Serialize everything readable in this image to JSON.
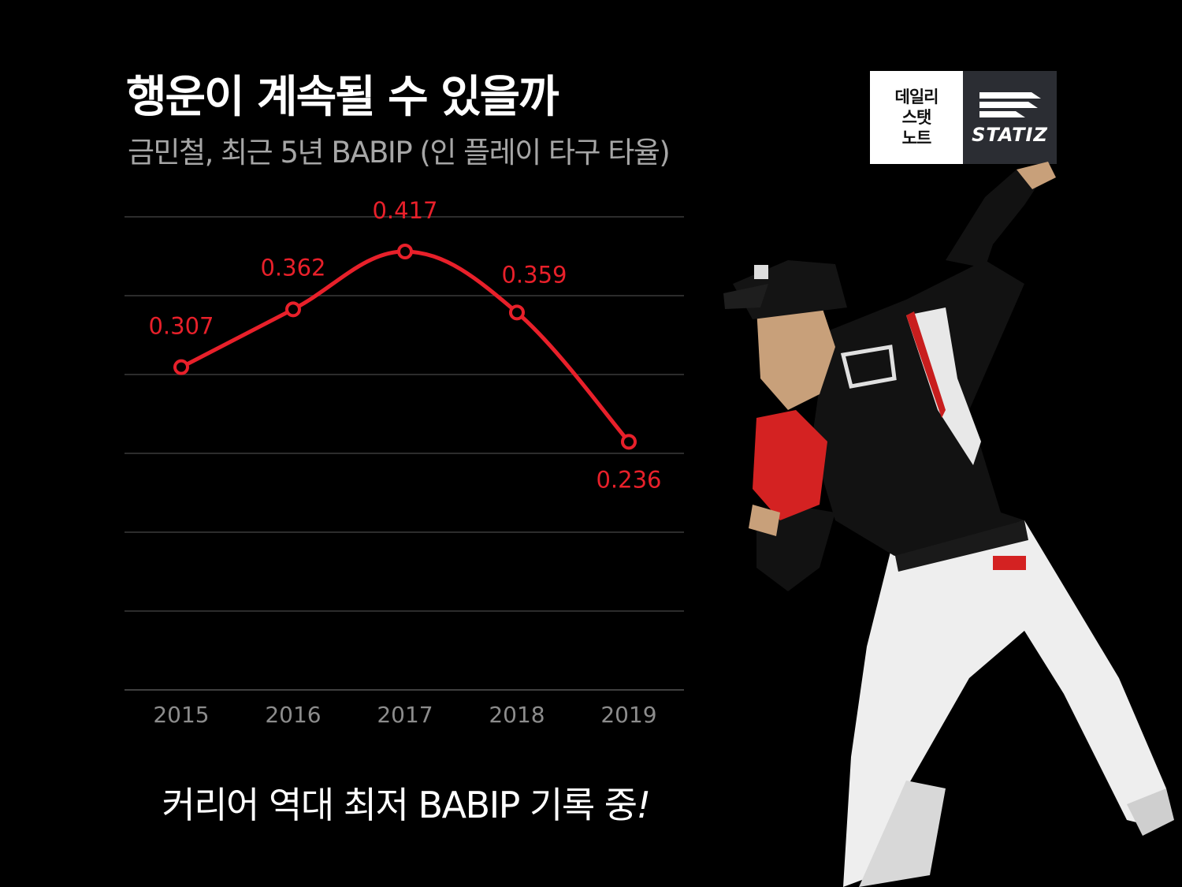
{
  "title": "행운이 계속될 수 있을까",
  "subtitle": "금민철, 최근 5년 BABIP (인 플레이 타구 타율)",
  "caption": {
    "text": "커리어 역대 최저 BABIP 기록 중",
    "mark": "!"
  },
  "logo": {
    "lines": [
      "데일리",
      "스탯",
      "노트"
    ],
    "brand": "STATIZ"
  },
  "chart_data": {
    "type": "line",
    "categories": [
      "2015",
      "2016",
      "2017",
      "2018",
      "2019"
    ],
    "values": [
      0.307,
      0.362,
      0.417,
      0.359,
      0.236
    ],
    "labels": [
      "0.307",
      "0.362",
      "0.417",
      "0.359",
      "0.236"
    ],
    "ylim": [
      0.0,
      0.45
    ],
    "grid": true,
    "line_color": "#e8202a",
    "axis_label_color": "#8c8c8c",
    "grid_color": "#3a3a3a"
  },
  "player_image": {
    "icon": "pitcher-photo",
    "jersey_color": "#111111",
    "pants_color": "#f2f2f2",
    "glove_color": "#d42222"
  }
}
